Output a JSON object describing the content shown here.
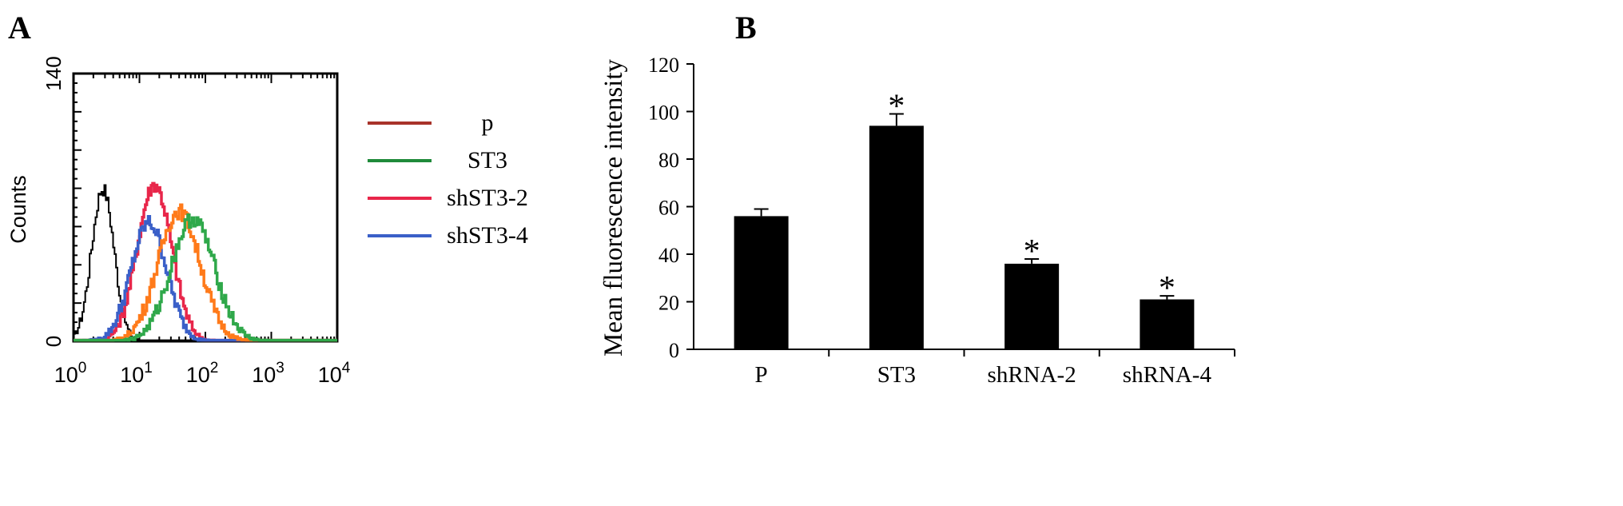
{
  "panels": {
    "a_label": "A",
    "b_label": "B"
  },
  "chart_data": [
    {
      "type": "line",
      "subtype": "flow-cytometry-histogram",
      "ylabel": "Counts",
      "xscale": "log",
      "xlim": [
        1,
        10000
      ],
      "ylim": [
        0,
        140
      ],
      "x_ticks": [
        {
          "value": 1,
          "base": "10",
          "exp": "0"
        },
        {
          "value": 10,
          "base": "10",
          "exp": "1"
        },
        {
          "value": 100,
          "base": "10",
          "exp": "2"
        },
        {
          "value": 1000,
          "base": "10",
          "exp": "3"
        },
        {
          "value": 10000,
          "base": "10",
          "exp": "4"
        }
      ],
      "y_ticks": [
        "0",
        "140"
      ],
      "legend_position": "right",
      "legend": [
        {
          "name": "p",
          "color": "#a8332a"
        },
        {
          "name": "ST3",
          "color": "#1f8a3a"
        },
        {
          "name": "shST3-2",
          "color": "#e8264a"
        },
        {
          "name": "shST3-4",
          "color": "#3a5fc8"
        }
      ],
      "series": [
        {
          "color": "#000000",
          "peak_x": 2.8,
          "peak_y": 80,
          "width": 0.17
        },
        {
          "color": "#e8264a",
          "peak_x": 17,
          "peak_y": 82,
          "width": 0.26
        },
        {
          "color": "#3a5fc8",
          "peak_x": 14,
          "peak_y": 62,
          "width": 0.27
        },
        {
          "color": "#ff7a1a",
          "peak_x": 40,
          "peak_y": 68,
          "width": 0.32
        },
        {
          "color": "#2fa84a",
          "peak_x": 65,
          "peak_y": 64,
          "width": 0.33
        }
      ]
    },
    {
      "type": "bar",
      "ylabel": "Mean fluorescence intensity",
      "categories": [
        "P",
        "ST3",
        "shRNA-2",
        "shRNA-4"
      ],
      "values": [
        56,
        94,
        36,
        21
      ],
      "errors": [
        3,
        5,
        2,
        1.5
      ],
      "significance": [
        "",
        "*",
        "*",
        "*"
      ],
      "ylim": [
        0,
        120
      ],
      "y_ticks": [
        "0",
        "20",
        "40",
        "60",
        "80",
        "100",
        "120"
      ],
      "bar_color": "#000000"
    }
  ]
}
